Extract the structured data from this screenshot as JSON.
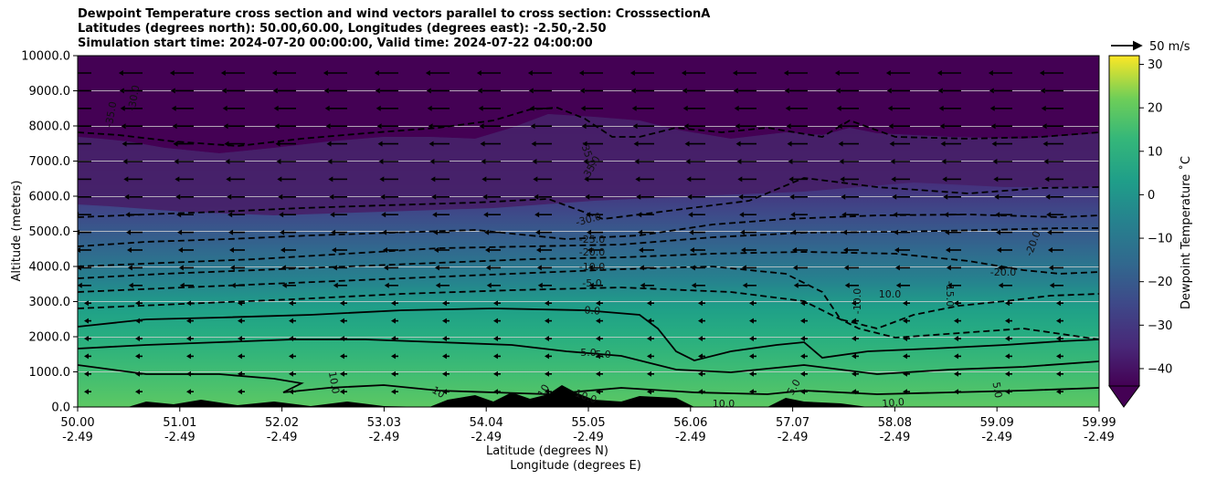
{
  "title_lines": [
    "Dewpoint Temperature cross section and wind vectors parallel to cross section: CrosssectionA",
    "Latitudes (degrees north): 50.00,60.00, Longitudes (degrees east): -2.50,-2.50",
    "Simulation start time: 2024-07-20 00:00:00, Valid time: 2024-07-22 04:00:00"
  ],
  "chart_data": {
    "type": "contour",
    "ylabel": "Altitude (meters)",
    "xlabel_lat": "Latitude (degrees N)",
    "xlabel_lon": "Longitude (degrees E)",
    "ylim": [
      0,
      10000
    ],
    "y_ticks": [
      "0.0",
      "1000.0",
      "2000.0",
      "3000.0",
      "4000.0",
      "5000.0",
      "6000.0",
      "7000.0",
      "8000.0",
      "9000.0",
      "10000.0"
    ],
    "x_ticks_lat": [
      "50.00",
      "51.01",
      "52.02",
      "53.03",
      "54.04",
      "55.05",
      "56.06",
      "57.07",
      "58.08",
      "59.09",
      "59.99"
    ],
    "x_ticks_lon": [
      "-2.49",
      "-2.49",
      "-2.49",
      "-2.49",
      "-2.49",
      "-2.49",
      "-2.49",
      "-2.49",
      "-2.49",
      "-2.49",
      "-2.49"
    ],
    "colorbar": {
      "label": "Dewpoint Temperature ˚C",
      "ticks": [
        "30",
        "20",
        "10",
        "0",
        "−10",
        "−20",
        "−30",
        "−40"
      ],
      "range": [
        -44,
        32
      ],
      "colormap": "viridis"
    },
    "wind_key": "50 m/s",
    "contour_labels": [
      "-35.0",
      "-30.0",
      "-35.0",
      "-35.0",
      "-30.0",
      "-25.0",
      "-20.0",
      "-10.0",
      "-5.0",
      "0.0",
      "5.0",
      "5.0",
      "10.0",
      "10",
      "10",
      "10.0",
      "10.0",
      "10.0",
      "-20.0",
      "-20.0",
      "-10.0",
      "-15.0",
      "10.0",
      "5.0",
      "5.0"
    ],
    "grid": "horizontal"
  }
}
